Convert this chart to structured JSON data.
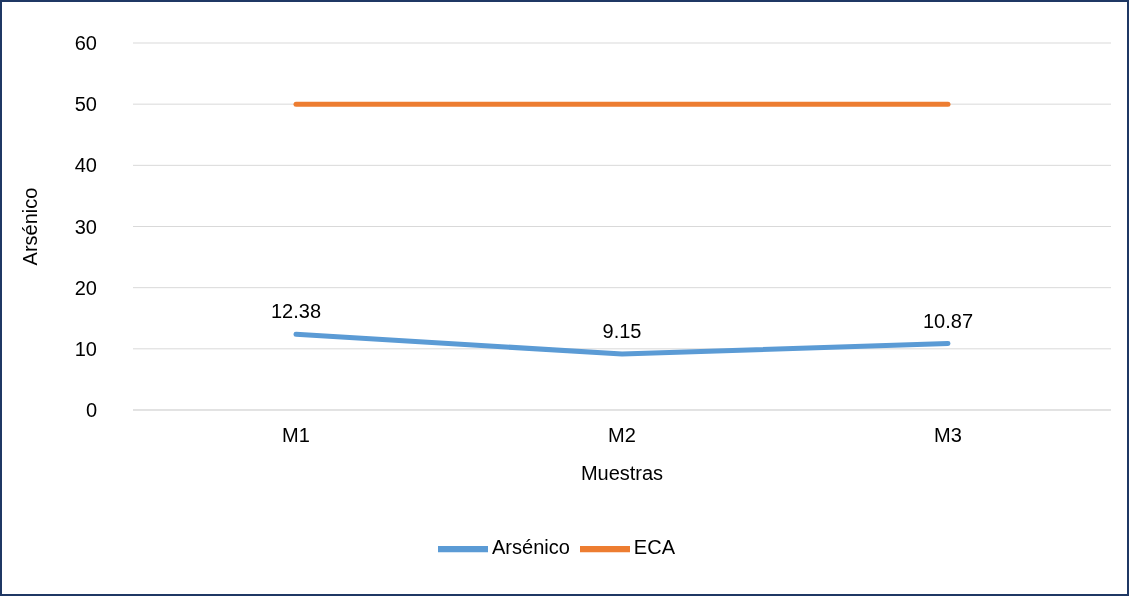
{
  "chart_data": {
    "type": "line",
    "xlabel": "Muestras",
    "ylabel": "Arsénico",
    "categories": [
      "M1",
      "M2",
      "M3"
    ],
    "series": [
      {
        "name": "Arsénico",
        "color": "#5b9bd5",
        "values": [
          12.38,
          9.15,
          10.87
        ],
        "value_labels": [
          "12.38",
          "9.15",
          "10.87"
        ]
      },
      {
        "name": "ECA",
        "color": "#ed7d31",
        "values": [
          50,
          50,
          50
        ]
      }
    ],
    "ylim": [
      0,
      60
    ],
    "yticks": [
      0,
      10,
      20,
      30,
      40,
      50,
      60
    ],
    "grid": "y",
    "legend": "bottom",
    "marker": "none",
    "line_style": "solid"
  }
}
